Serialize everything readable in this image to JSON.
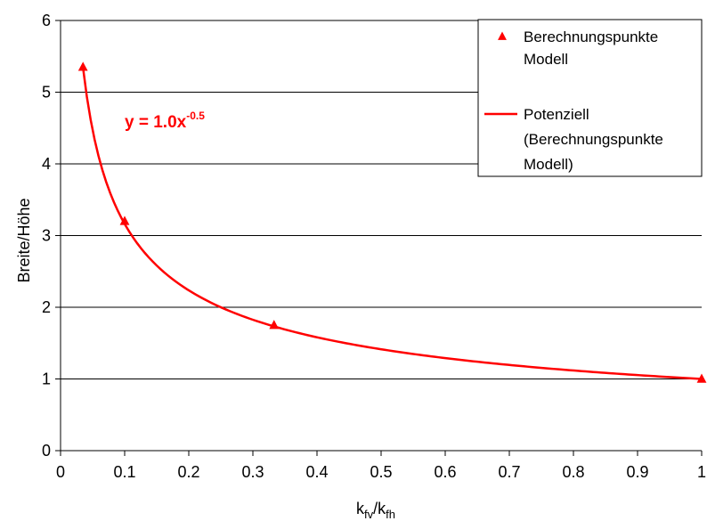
{
  "chart_data": {
    "type": "scatter",
    "xlabel": {
      "base": "k",
      "sub1": "fv",
      "sep": "/k",
      "sub2": "fh"
    },
    "ylabel": "Breite/Höhe",
    "xlim": [
      0,
      1
    ],
    "ylim": [
      0,
      6
    ],
    "xticks": [
      "0",
      "0.1",
      "0.2",
      "0.3",
      "0.4",
      "0.5",
      "0.6",
      "0.7",
      "0.8",
      "0.9",
      "1"
    ],
    "yticks": [
      "0",
      "1",
      "2",
      "3",
      "4",
      "5",
      "6"
    ],
    "grid": "horizontal",
    "legend_position": "top-right",
    "series": [
      {
        "name": "Berechnungspunkte Modell",
        "legend_lines": [
          "Berechnungspunkte",
          "Modell"
        ],
        "kind": "points",
        "marker": "triangle",
        "color": "#ff0000",
        "x": [
          0.035,
          0.1,
          0.333,
          1.0
        ],
        "y": [
          5.35,
          3.2,
          1.75,
          1.0
        ]
      },
      {
        "name": "Potenziell (Berechnungspunkte Modell)",
        "legend_lines": [
          "Potenziell",
          "(Berechnungspunkte",
          "Modell)"
        ],
        "kind": "trendline",
        "color": "#ff0000",
        "equation": {
          "coef": 1.0,
          "exponent": -0.5
        },
        "x_range": [
          0.035,
          1.0
        ]
      }
    ],
    "annotation": {
      "base": "y = 1.0x",
      "sup": "-0.5"
    }
  }
}
